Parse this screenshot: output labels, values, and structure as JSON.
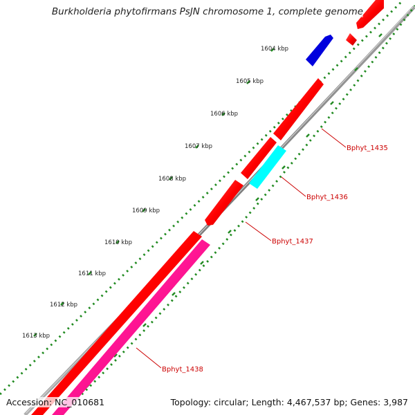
{
  "title": "Burkholderia phytofirmans PsJN chromosome 1, complete genome",
  "footer": {
    "accession_label": "Accession: NC_010681",
    "summary": "Topology: circular; Length: 4,467,537 bp; Genes: 3,987"
  },
  "kbp_labels": [
    "1604 kbp",
    "1605 kbp",
    "1606 kbp",
    "1607 kbp",
    "1608 kbp",
    "1609 kbp",
    "1610 kbp",
    "1611 kbp",
    "1612 kbp",
    "1613 kbp"
  ],
  "gene_labels": [
    "Bphyt_1435",
    "Bphyt_1436",
    "Bphyt_1437",
    "Bphyt_1438"
  ],
  "colors": {
    "backbone": "#8c8c8c",
    "forward_gene": "#ff0000",
    "reverse_gene": "#ff0000",
    "blue_gene": "#0000dd",
    "cyan_gene": "#00ffff",
    "pink_track": "#ff1493",
    "dot_track": "#228b22",
    "label_text": "#cc0000"
  }
}
